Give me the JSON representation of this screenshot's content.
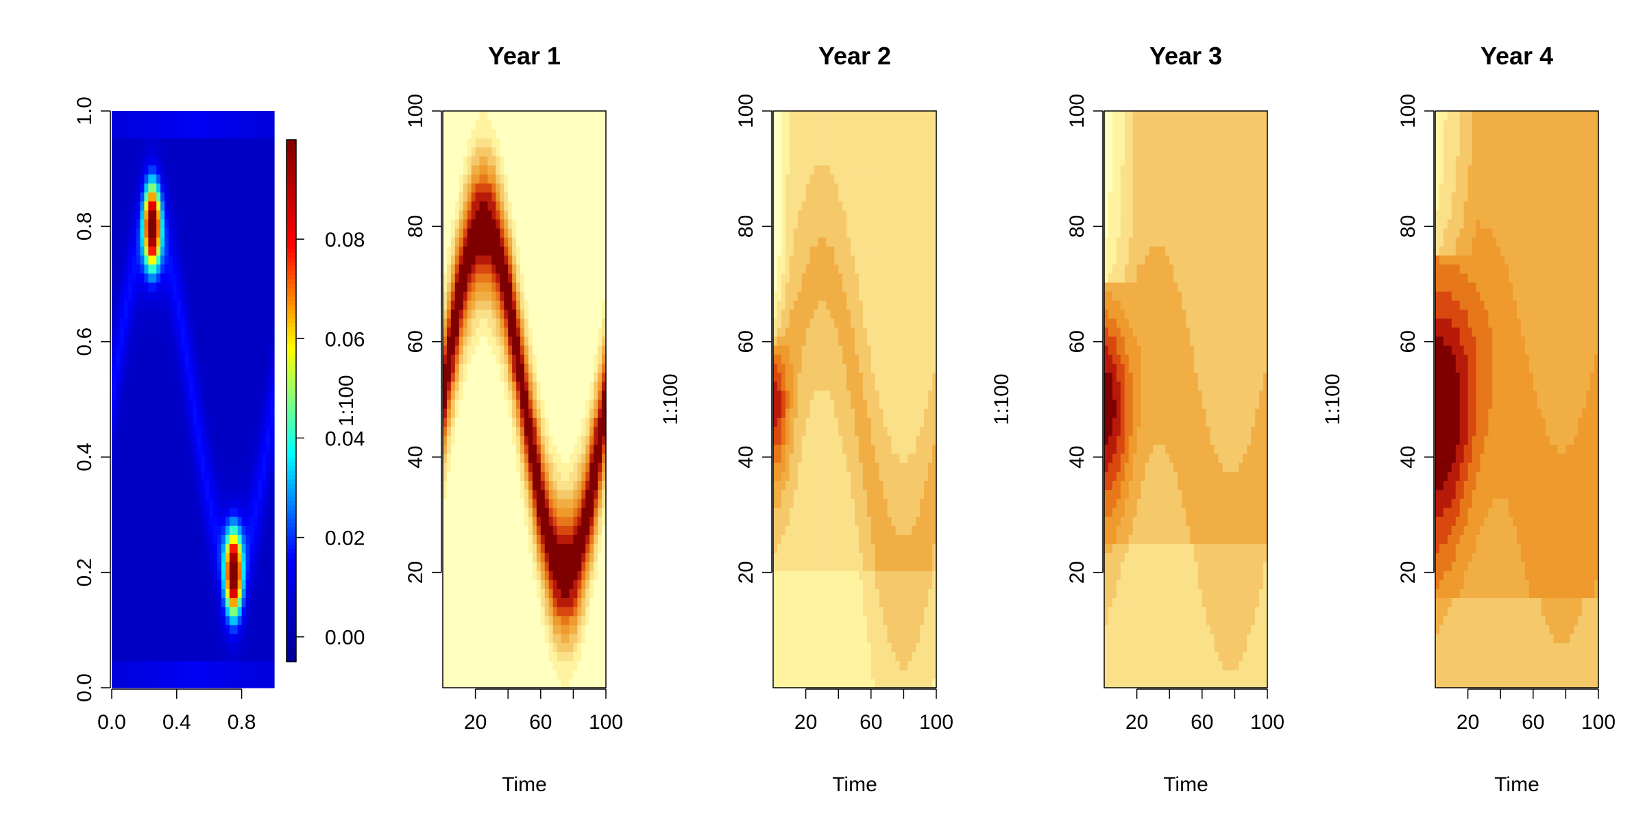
{
  "chart_data": [
    {
      "type": "heatmap",
      "title": "",
      "xlabel": "",
      "ylabel": "",
      "xlim": [
        0,
        1
      ],
      "ylim": [
        0,
        1
      ],
      "x_ticks": [
        0.0,
        0.4,
        0.8
      ],
      "x_tick_labels": [
        "0.0",
        "0.4",
        "0.8"
      ],
      "y_ticks": [
        0.0,
        0.2,
        0.4,
        0.6,
        0.8,
        1.0
      ],
      "y_tick_labels": [
        "0.0",
        "0.2",
        "0.4",
        "0.6",
        "0.8",
        "1.0"
      ],
      "palette": "jet",
      "palette_colors": [
        "#00008F",
        "#0000FF",
        "#00FFFF",
        "#FFFF00",
        "#FF0000",
        "#800000"
      ],
      "peaks": [
        {
          "x": 0.25,
          "y": 0.8,
          "value": 0.095
        },
        {
          "x": 0.75,
          "y": 0.2,
          "value": 0.095
        }
      ],
      "colorbar": {
        "label": "1:100",
        "range": [
          -0.005,
          0.1
        ],
        "ticks": [
          0.0,
          0.02,
          0.04,
          0.06,
          0.08
        ],
        "tick_labels": [
          "0.00",
          "0.02",
          "0.04",
          "0.06",
          "0.08"
        ]
      }
    },
    {
      "type": "heatmap",
      "title": "Year 1",
      "xlabel": "Time",
      "ylabel": "",
      "xlim": [
        0,
        100
      ],
      "ylim": [
        0,
        100
      ],
      "x_ticks": [
        20,
        40,
        60,
        80,
        100
      ],
      "x_tick_labels": [
        "20",
        "",
        "60",
        "",
        "100"
      ],
      "y_ticks": [
        20,
        40,
        60,
        80,
        100
      ],
      "y_tick_labels": [
        "20",
        "40",
        "60",
        "80",
        "100"
      ],
      "palette": "heat",
      "palette_colors": [
        "#FFFFBF",
        "#FFF3A0",
        "#FBE08A",
        "#F5C86A",
        "#F1AE45",
        "#EE9A2C",
        "#E7781A",
        "#D9480F",
        "#B81A0A",
        "#7E0000"
      ],
      "pattern": "sine band, peak y=80 at x=25, trough y=20 at x=75"
    },
    {
      "type": "heatmap",
      "title": "Year 2",
      "xlabel": "Time",
      "ylabel": "1:100",
      "xlim": [
        0,
        100
      ],
      "ylim": [
        0,
        100
      ],
      "x_ticks": [
        20,
        40,
        60,
        80,
        100
      ],
      "x_tick_labels": [
        "20",
        "",
        "60",
        "",
        "100"
      ],
      "y_ticks": [
        20,
        40,
        60,
        80,
        100
      ],
      "y_tick_labels": [
        "20",
        "40",
        "60",
        "80",
        "100"
      ],
      "palette": "heat",
      "palette_colors": [
        "#FFFFBF",
        "#FFF3A0",
        "#FBE08A",
        "#F5C86A",
        "#F1AE45",
        "#EE9A2C",
        "#E7781A",
        "#D9480F",
        "#B81A0A",
        "#7E0000"
      ]
    },
    {
      "type": "heatmap",
      "title": "Year 3",
      "xlabel": "Time",
      "ylabel": "1:100",
      "xlim": [
        0,
        100
      ],
      "ylim": [
        0,
        100
      ],
      "x_ticks": [
        20,
        40,
        60,
        80,
        100
      ],
      "x_tick_labels": [
        "20",
        "",
        "60",
        "",
        "100"
      ],
      "y_ticks": [
        20,
        40,
        60,
        80,
        100
      ],
      "y_tick_labels": [
        "20",
        "40",
        "60",
        "80",
        "100"
      ],
      "palette": "heat",
      "palette_colors": [
        "#FFFFBF",
        "#FFF3A0",
        "#FBE08A",
        "#F5C86A",
        "#F1AE45",
        "#EE9A2C",
        "#E7781A",
        "#D9480F",
        "#B81A0A",
        "#7E0000"
      ]
    },
    {
      "type": "heatmap",
      "title": "Year 4",
      "xlabel": "Time",
      "ylabel": "1:100",
      "xlim": [
        0,
        100
      ],
      "ylim": [
        0,
        100
      ],
      "x_ticks": [
        20,
        40,
        60,
        80,
        100
      ],
      "x_tick_labels": [
        "20",
        "",
        "60",
        "",
        "100"
      ],
      "y_ticks": [
        20,
        40,
        60,
        80,
        100
      ],
      "y_tick_labels": [
        "20",
        "40",
        "60",
        "80",
        "100"
      ],
      "palette": "heat",
      "palette_colors": [
        "#FFFFBF",
        "#FFF3A0",
        "#FBE08A",
        "#F5C86A",
        "#F1AE45",
        "#EE9A2C",
        "#E7781A",
        "#D9480F",
        "#B81A0A",
        "#7E0000"
      ]
    }
  ]
}
